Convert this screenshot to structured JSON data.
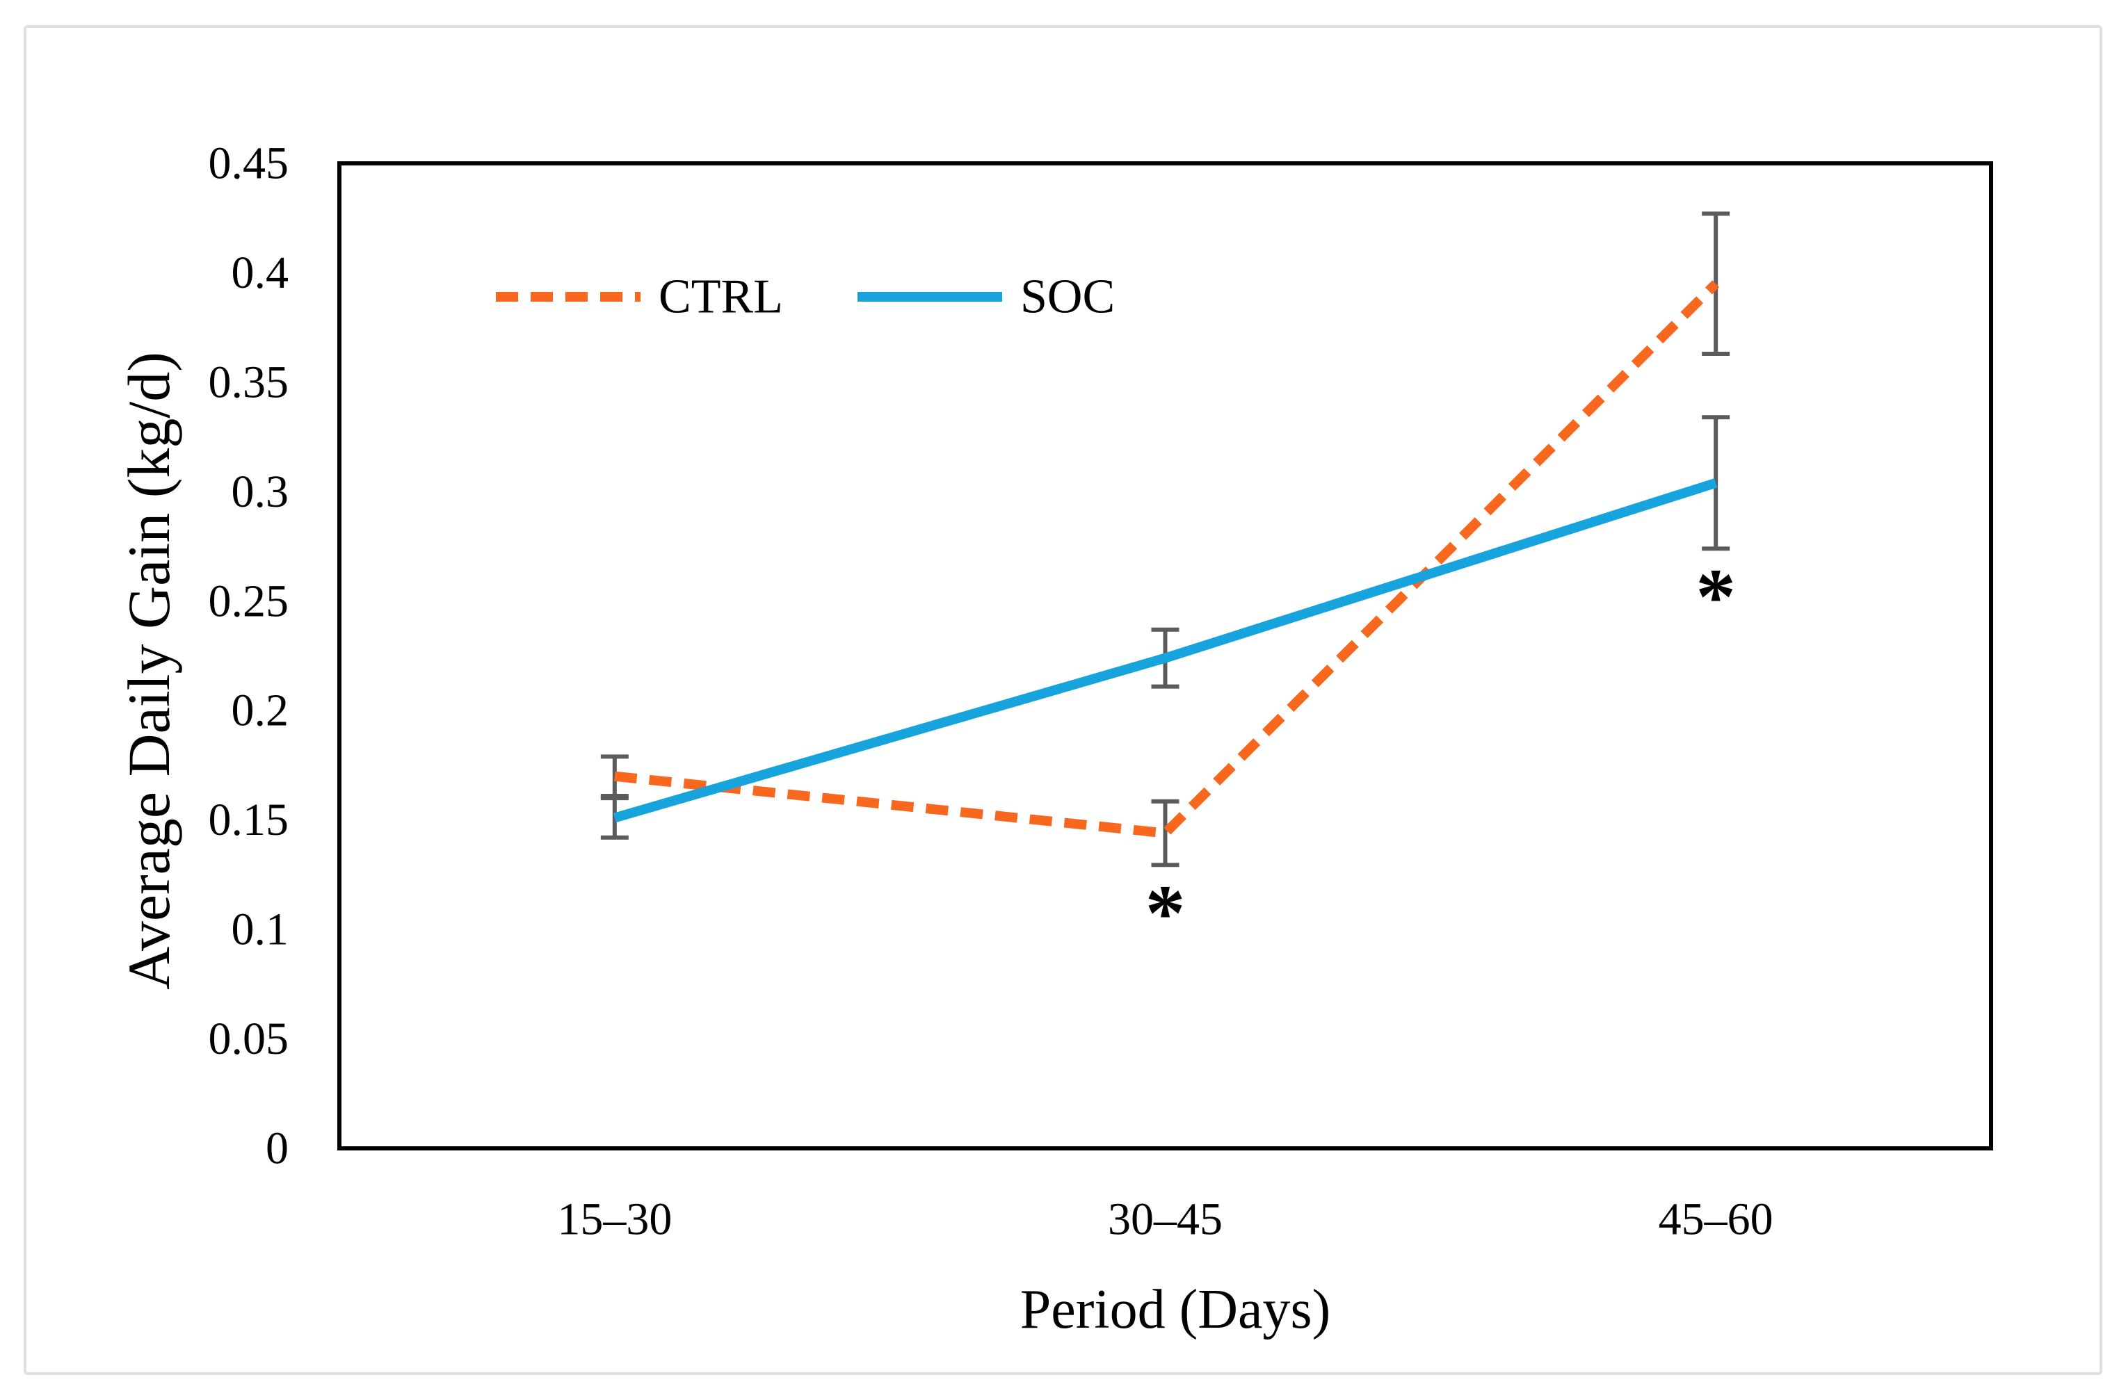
{
  "figure": {
    "background_color": "#FFFFFF",
    "frame_color": "#DFDFDF"
  },
  "chart_data": {
    "type": "line",
    "title": "",
    "xlabel": "Period (Days)",
    "ylabel": "Average Daily Gain (kg/d)",
    "categories": [
      "15–30",
      "30–45",
      "45–60"
    ],
    "series": [
      {
        "name": "CTRL",
        "color": "#F7671D",
        "line_style": "dashed",
        "values": [
          0.17,
          0.144,
          0.395
        ],
        "error_bars": [
          0.009,
          0.0145,
          0.032
        ]
      },
      {
        "name": "SOC",
        "color": "#17A4DC",
        "line_style": "solid",
        "values": [
          0.151,
          0.224,
          0.304
        ],
        "error_bars": [
          0.009,
          0.013,
          0.03
        ]
      }
    ],
    "ylim": [
      0,
      0.45
    ],
    "y_tick_step": 0.05,
    "y_tick_labels": [
      "0.45",
      "0.4",
      "0.35",
      "0.3",
      "0.25",
      "0.2",
      "0.15",
      "0.1",
      "0.05",
      "0"
    ],
    "grid": false,
    "legend_position": "top-center-inside",
    "error_bar_color": "#5B5B5B",
    "annotations": [
      {
        "text": "*",
        "series": "CTRL",
        "category": "30–45",
        "placement": "below-error-bar"
      },
      {
        "text": "*",
        "series": "SOC",
        "category": "45–60",
        "placement": "below-error-bar"
      }
    ]
  }
}
